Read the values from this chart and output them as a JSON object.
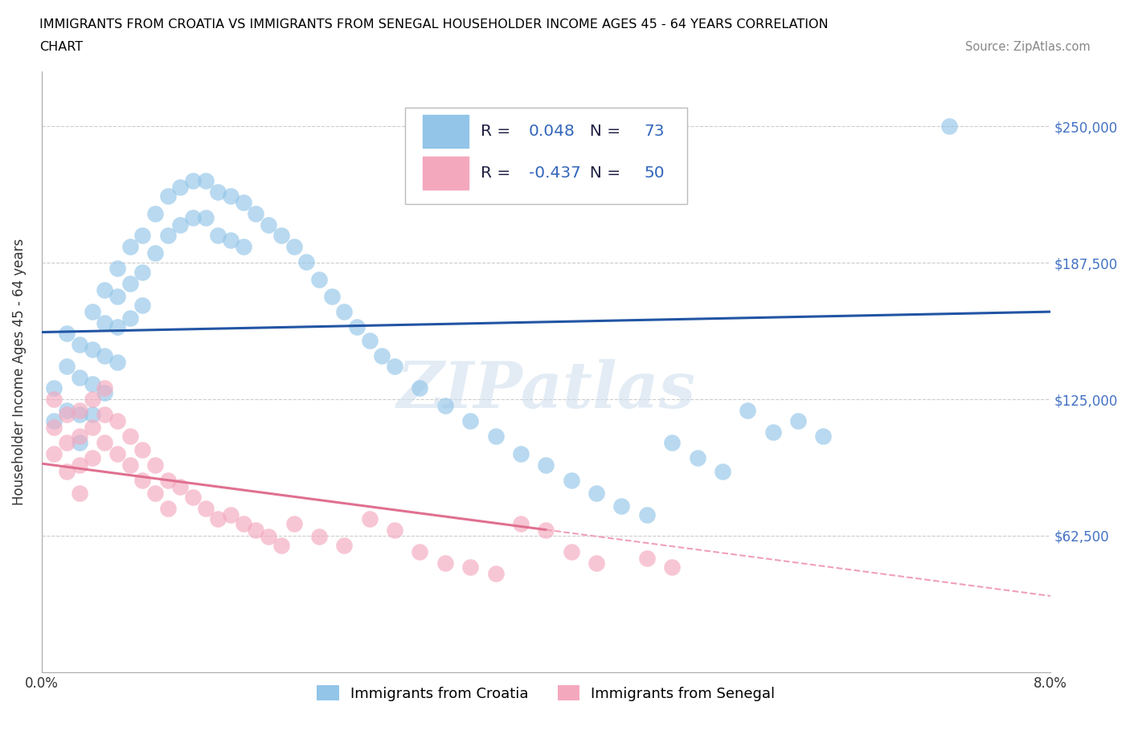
{
  "title_line1": "IMMIGRANTS FROM CROATIA VS IMMIGRANTS FROM SENEGAL HOUSEHOLDER INCOME AGES 45 - 64 YEARS CORRELATION",
  "title_line2": "CHART",
  "source": "Source: ZipAtlas.com",
  "ylabel": "Householder Income Ages 45 - 64 years",
  "xlim": [
    0.0,
    0.08
  ],
  "ylim": [
    0,
    275000
  ],
  "yticks": [
    62500,
    125000,
    187500,
    250000
  ],
  "ytick_labels": [
    "$62,500",
    "$125,000",
    "$187,500",
    "$250,000"
  ],
  "xticks": [
    0.0,
    0.01,
    0.02,
    0.03,
    0.04,
    0.05,
    0.06,
    0.07,
    0.08
  ],
  "xtick_labels": [
    "0.0%",
    "",
    "",
    "",
    "",
    "",
    "",
    "",
    "8.0%"
  ],
  "croatia_color": "#92C5E8",
  "senegal_color": "#F4A8BE",
  "croatia_R": 0.048,
  "croatia_N": 73,
  "senegal_R": -0.437,
  "senegal_N": 50,
  "line_croatia_color": "#2255A4",
  "line_senegal_color": "#E07090",
  "dashed_senegal_color": "#F0A0B8",
  "grid_color": "#CCCCCC",
  "watermark": "ZIPatlas",
  "legend_text_dark": "#222244",
  "legend_text_blue": "#3366BB",
  "right_tick_color": "#4472C4",
  "croatia_x": [
    0.001,
    0.001,
    0.002,
    0.002,
    0.002,
    0.003,
    0.003,
    0.003,
    0.003,
    0.004,
    0.004,
    0.004,
    0.004,
    0.005,
    0.005,
    0.005,
    0.005,
    0.006,
    0.006,
    0.006,
    0.006,
    0.007,
    0.007,
    0.007,
    0.008,
    0.008,
    0.008,
    0.009,
    0.009,
    0.01,
    0.01,
    0.011,
    0.011,
    0.012,
    0.012,
    0.013,
    0.013,
    0.014,
    0.014,
    0.015,
    0.015,
    0.016,
    0.016,
    0.017,
    0.018,
    0.019,
    0.02,
    0.021,
    0.022,
    0.023,
    0.024,
    0.025,
    0.026,
    0.027,
    0.028,
    0.03,
    0.032,
    0.034,
    0.036,
    0.038,
    0.04,
    0.042,
    0.044,
    0.046,
    0.048,
    0.05,
    0.052,
    0.054,
    0.056,
    0.058,
    0.06,
    0.062,
    0.072
  ],
  "croatia_y": [
    130000,
    115000,
    155000,
    140000,
    120000,
    150000,
    135000,
    118000,
    105000,
    165000,
    148000,
    132000,
    118000,
    175000,
    160000,
    145000,
    128000,
    185000,
    172000,
    158000,
    142000,
    195000,
    178000,
    162000,
    200000,
    183000,
    168000,
    210000,
    192000,
    218000,
    200000,
    222000,
    205000,
    225000,
    208000,
    225000,
    208000,
    220000,
    200000,
    218000,
    198000,
    215000,
    195000,
    210000,
    205000,
    200000,
    195000,
    188000,
    180000,
    172000,
    165000,
    158000,
    152000,
    145000,
    140000,
    130000,
    122000,
    115000,
    108000,
    100000,
    95000,
    88000,
    82000,
    76000,
    72000,
    105000,
    98000,
    92000,
    120000,
    110000,
    115000,
    108000,
    250000
  ],
  "senegal_x": [
    0.001,
    0.001,
    0.001,
    0.002,
    0.002,
    0.002,
    0.003,
    0.003,
    0.003,
    0.003,
    0.004,
    0.004,
    0.004,
    0.005,
    0.005,
    0.005,
    0.006,
    0.006,
    0.007,
    0.007,
    0.008,
    0.008,
    0.009,
    0.009,
    0.01,
    0.01,
    0.011,
    0.012,
    0.013,
    0.014,
    0.015,
    0.016,
    0.017,
    0.018,
    0.019,
    0.02,
    0.022,
    0.024,
    0.026,
    0.028,
    0.03,
    0.032,
    0.034,
    0.036,
    0.038,
    0.04,
    0.042,
    0.044,
    0.048,
    0.05
  ],
  "senegal_y": [
    125000,
    112000,
    100000,
    118000,
    105000,
    92000,
    120000,
    108000,
    95000,
    82000,
    125000,
    112000,
    98000,
    130000,
    118000,
    105000,
    115000,
    100000,
    108000,
    95000,
    102000,
    88000,
    95000,
    82000,
    88000,
    75000,
    85000,
    80000,
    75000,
    70000,
    72000,
    68000,
    65000,
    62000,
    58000,
    68000,
    62000,
    58000,
    70000,
    65000,
    55000,
    50000,
    48000,
    45000,
    68000,
    65000,
    55000,
    50000,
    52000,
    48000
  ]
}
